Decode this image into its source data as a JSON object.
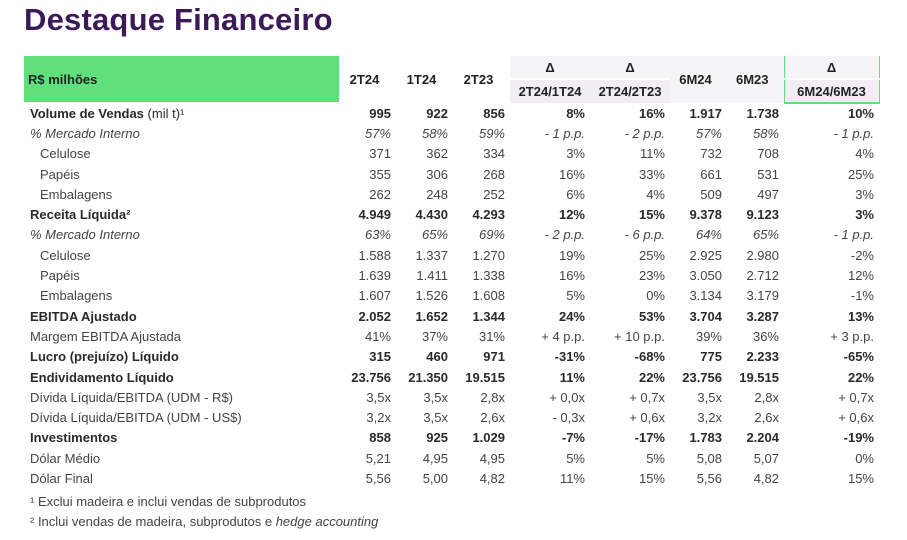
{
  "title": "Destaque Financeiro",
  "header": {
    "corner": "R$ milhões",
    "periods": [
      "2T24",
      "1T24",
      "2T23"
    ],
    "delta_symbol": "Δ",
    "delta_cols": [
      "2T24/1T24",
      "2T24/2T23"
    ],
    "half_periods": [
      "6M24",
      "6M23"
    ],
    "delta_half": "6M24/6M23"
  },
  "rows": [
    {
      "label": "Volume de Vendas",
      "unit": "(mil t)¹",
      "style": "bold",
      "values": [
        "995",
        "922",
        "856",
        "8%",
        "16%",
        "1.917",
        "1.738",
        "10%"
      ]
    },
    {
      "label": "% Mercado Interno",
      "style": "italic",
      "values": [
        "57%",
        "58%",
        "59%",
        "- 1 p.p.",
        "- 2 p.p.",
        "57%",
        "58%",
        "- 1 p.p."
      ]
    },
    {
      "label": "Celulose",
      "style": "indent",
      "values": [
        "371",
        "362",
        "334",
        "3%",
        "11%",
        "732",
        "708",
        "4%"
      ]
    },
    {
      "label": "Papéis",
      "style": "indent",
      "values": [
        "355",
        "306",
        "268",
        "16%",
        "33%",
        "661",
        "531",
        "25%"
      ]
    },
    {
      "label": "Embalagens",
      "style": "indent",
      "values": [
        "262",
        "248",
        "252",
        "6%",
        "4%",
        "509",
        "497",
        "3%"
      ]
    },
    {
      "label": "Receita Líquida²",
      "style": "bold",
      "values": [
        "4.949",
        "4.430",
        "4.293",
        "12%",
        "15%",
        "9.378",
        "9.123",
        "3%"
      ]
    },
    {
      "label": "% Mercado Interno",
      "style": "italic",
      "values": [
        "63%",
        "65%",
        "69%",
        "- 2 p.p.",
        "- 6 p.p.",
        "64%",
        "65%",
        "- 1 p.p."
      ]
    },
    {
      "label": "Celulose",
      "style": "indent",
      "values": [
        "1.588",
        "1.337",
        "1.270",
        "19%",
        "25%",
        "2.925",
        "2.980",
        "-2%"
      ]
    },
    {
      "label": "Papéis",
      "style": "indent",
      "values": [
        "1.639",
        "1.411",
        "1.338",
        "16%",
        "23%",
        "3.050",
        "2.712",
        "12%"
      ]
    },
    {
      "label": "Embalagens",
      "style": "indent",
      "values": [
        "1.607",
        "1.526",
        "1.608",
        "5%",
        "0%",
        "3.134",
        "3.179",
        "-1%"
      ]
    },
    {
      "label": "EBITDA Ajustado",
      "style": "bold",
      "values": [
        "2.052",
        "1.652",
        "1.344",
        "24%",
        "53%",
        "3.704",
        "3.287",
        "13%"
      ]
    },
    {
      "label": "Margem EBITDA Ajustada",
      "style": "normal",
      "values": [
        "41%",
        "37%",
        "31%",
        "+ 4 p.p.",
        "+ 10 p.p.",
        "39%",
        "36%",
        "+ 3 p.p."
      ]
    },
    {
      "label": "Lucro (prejuízo) Líquido",
      "style": "bold",
      "values": [
        "315",
        "460",
        "971",
        "-31%",
        "-68%",
        "775",
        "2.233",
        "-65%"
      ]
    },
    {
      "label": "Endividamento Líquido",
      "style": "bold",
      "values": [
        "23.756",
        "21.350",
        "19.515",
        "11%",
        "22%",
        "23.756",
        "19.515",
        "22%"
      ]
    },
    {
      "label": "Dívida Líquida/EBITDA (UDM - R$)",
      "style": "normal",
      "values": [
        "3,5x",
        "3,5x",
        "2,8x",
        "+ 0,0x",
        "+ 0,7x",
        "3,5x",
        "2,8x",
        "+ 0,7x"
      ]
    },
    {
      "label": "Dívida Líquida/EBITDA (UDM - US$)",
      "style": "normal",
      "values": [
        "3,2x",
        "3,5x",
        "2,6x",
        "- 0,3x",
        "+ 0,6x",
        "3,2x",
        "2,6x",
        "+ 0,6x"
      ]
    },
    {
      "label": "Investimentos",
      "style": "bold",
      "values": [
        "858",
        "925",
        "1.029",
        "-7%",
        "-17%",
        "1.783",
        "2.204",
        "-19%"
      ]
    },
    {
      "label": "Dólar Médio",
      "style": "normal",
      "values": [
        "5,21",
        "4,95",
        "4,95",
        "5%",
        "5%",
        "5,08",
        "5,07",
        "0%"
      ]
    },
    {
      "label": "Dólar Final",
      "style": "normal",
      "values": [
        "5,56",
        "5,00",
        "4,82",
        "11%",
        "15%",
        "5,56",
        "4,82",
        "15%"
      ]
    }
  ],
  "footnotes": {
    "fn1": "¹ Exclui madeira e inclui vendas de subprodutos",
    "fn2_prefix": "² Inclui vendas de madeira, subprodutos e ",
    "fn2_italic": "hedge accounting"
  }
}
